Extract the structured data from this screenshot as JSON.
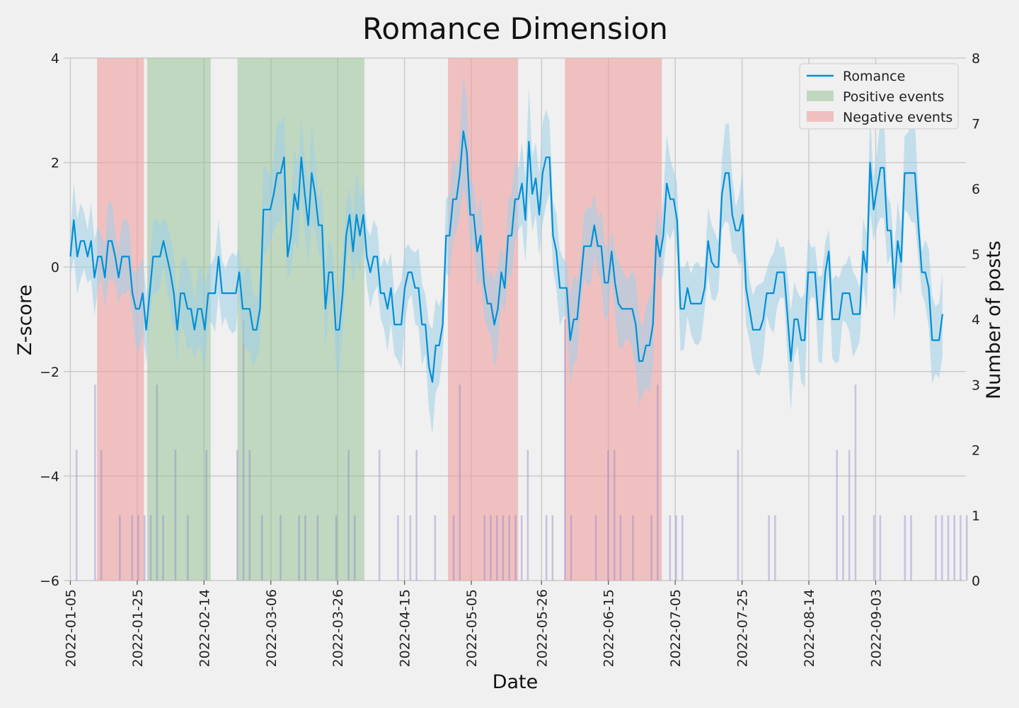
{
  "chart_data": {
    "type": "line",
    "title": "Romance Dimension",
    "xlabel": "Date",
    "ylabel": "Z-score",
    "y2label": "Number of posts",
    "ylim": [
      -6,
      4
    ],
    "y2lim": [
      0,
      8
    ],
    "xlim": [
      "2022-01-03",
      "2022-09-30"
    ],
    "x_ticks": [
      "2022-01-05",
      "2022-01-25",
      "2022-02-14",
      "2022-03-06",
      "2022-03-26",
      "2022-04-15",
      "2022-05-05",
      "2022-05-26",
      "2022-06-15",
      "2022-07-05",
      "2022-07-25",
      "2022-08-14",
      "2022-09-03"
    ],
    "y_ticks": [
      -6,
      -4,
      -2,
      0,
      2,
      4
    ],
    "y2_ticks": [
      0,
      1,
      2,
      3,
      4,
      5,
      6,
      7,
      8
    ],
    "grid": true,
    "legend_position": "top-right",
    "legend": [
      {
        "label": "Romance",
        "kind": "line",
        "color": "#008fd5"
      },
      {
        "label": "Positive events",
        "kind": "patch",
        "color": "#8fc08f"
      },
      {
        "label": "Negative events",
        "kind": "patch",
        "color": "#f0a0a0"
      }
    ],
    "colors": {
      "line": "#008fd5",
      "band": "#9fcfe8",
      "bars": "#8a7fc8",
      "positive": "#8fc08f",
      "negative": "#f0a0a0"
    },
    "positive_events": [
      [
        "2022-01-28",
        "2022-02-16"
      ],
      [
        "2022-02-24",
        "2022-04-03"
      ]
    ],
    "negative_events": [
      [
        "2022-01-13",
        "2022-01-27"
      ],
      [
        "2022-04-28",
        "2022-05-19"
      ],
      [
        "2022-06-02",
        "2022-07-01"
      ]
    ],
    "series": [
      {
        "name": "Romance",
        "x_start": "2022-01-05",
        "x_end": "2022-09-23",
        "values": [
          0.2,
          0.9,
          0.2,
          0.5,
          0.5,
          0.2,
          0.5,
          -0.2,
          0.2,
          0.2,
          -0.2,
          0.5,
          0.5,
          0.2,
          -0.2,
          0.2,
          0.2,
          0.2,
          -0.5,
          -0.8,
          -0.8,
          -0.5,
          -1.2,
          -0.5,
          0.2,
          0.2,
          0.2,
          0.5,
          0.2,
          -0.1,
          -0.5,
          -1.2,
          -0.5,
          -0.5,
          -0.8,
          -0.8,
          -1.2,
          -0.8,
          -0.8,
          -1.2,
          -0.5,
          -0.5,
          -0.5,
          0.2,
          -0.5,
          -0.5,
          -0.5,
          -0.5,
          -0.5,
          -0.1,
          -0.8,
          -0.8,
          -0.8,
          -1.2,
          -1.2,
          -0.8,
          1.1,
          1.1,
          1.1,
          1.4,
          1.8,
          1.8,
          2.1,
          0.2,
          0.6,
          1.4,
          1.1,
          2.1,
          1.4,
          0.8,
          1.8,
          1.4,
          0.8,
          0.8,
          -0.8,
          -0.1,
          -0.1,
          -1.2,
          -1.2,
          -0.5,
          0.6,
          1.0,
          0.3,
          1.0,
          0.6,
          1.0,
          0.2,
          -0.1,
          0.2,
          0.2,
          -0.5,
          -0.5,
          -0.8,
          -0.4,
          -1.1,
          -1.1,
          -1.1,
          -0.4,
          -0.1,
          -0.1,
          -0.4,
          -0.4,
          -1.1,
          -1.1,
          -1.9,
          -2.2,
          -1.5,
          -1.5,
          -1.1,
          0.6,
          0.6,
          1.3,
          1.3,
          1.8,
          2.6,
          2.2,
          1.0,
          1.0,
          0.3,
          0.6,
          -0.3,
          -0.7,
          -0.7,
          -1.1,
          -0.8,
          -0.1,
          -0.4,
          0.6,
          0.6,
          1.3,
          1.3,
          1.6,
          0.9,
          2.4,
          1.4,
          1.7,
          1.0,
          1.8,
          2.1,
          2.1,
          0.6,
          0.3,
          -0.4,
          -0.4,
          -0.4,
          -1.4,
          -1.0,
          -1.0,
          -0.3,
          0.4,
          0.4,
          0.4,
          0.8,
          0.4,
          0.4,
          -0.3,
          -0.3,
          0.3,
          -0.3,
          -0.7,
          -0.8,
          -0.8,
          -0.8,
          -0.8,
          -1.1,
          -1.8,
          -1.8,
          -1.5,
          -1.5,
          -1.1,
          0.6,
          0.2,
          0.6,
          1.6,
          1.3,
          1.3,
          0.9,
          -0.8,
          -0.8,
          -0.4,
          -0.7,
          -0.7,
          -0.7,
          -0.7,
          -0.4,
          0.5,
          0.1,
          0.0,
          0.0,
          1.4,
          1.8,
          1.8,
          1.0,
          0.7,
          0.7,
          1.0,
          -0.4,
          -0.8,
          -1.2,
          -1.2,
          -1.2,
          -1.0,
          -0.5,
          -0.5,
          -0.5,
          -0.1,
          -0.1,
          -0.1,
          -0.9,
          -1.8,
          -1.0,
          -1.0,
          -1.4,
          -1.4,
          -0.1,
          -0.1,
          -0.1,
          -1.0,
          -1.0,
          -0.1,
          0.3,
          -1.0,
          -1.0,
          -1.0,
          -0.5,
          -0.5,
          -0.5,
          -0.9,
          -0.9,
          -0.9,
          0.3,
          -0.1,
          2.0,
          1.1,
          1.5,
          1.9,
          1.9,
          0.7,
          0.7,
          -0.4,
          0.5,
          0.1,
          1.8,
          1.8,
          1.8,
          1.8,
          0.8,
          -0.1,
          -0.1,
          -0.4,
          -1.4,
          -1.4,
          -1.4,
          -0.9
        ]
      }
    ],
    "post_counts": {
      "x_start": "2022-01-05",
      "values": [
        0,
        2,
        0,
        0,
        3,
        2,
        0,
        0,
        1,
        0,
        1,
        1,
        1,
        1,
        3,
        1,
        0,
        2,
        0,
        1,
        0,
        0,
        2,
        0,
        0,
        0,
        0,
        2,
        4,
        2,
        0,
        1,
        0,
        0,
        1,
        0,
        0,
        1,
        1,
        0,
        1,
        0,
        0,
        1,
        0,
        2,
        1,
        0,
        0,
        0,
        2,
        0,
        0,
        1,
        0,
        1,
        2,
        0,
        0,
        1,
        0,
        0,
        1,
        3,
        0,
        0,
        0,
        1,
        1,
        1,
        1,
        1,
        1,
        1,
        2,
        0,
        0,
        1,
        1,
        0,
        4,
        1,
        0,
        0,
        0,
        1,
        0,
        2,
        2,
        1,
        0,
        1,
        0,
        0,
        1,
        3,
        0,
        1,
        1,
        1,
        0,
        0,
        0,
        0,
        0,
        0,
        0,
        0,
        2,
        0,
        0,
        0,
        0,
        1,
        1,
        0,
        0,
        0,
        0,
        0,
        0,
        0,
        0,
        0,
        2,
        1,
        2,
        3,
        0,
        0,
        1,
        1,
        0,
        0,
        0,
        1,
        1,
        0,
        0,
        0,
        1,
        1,
        1,
        1,
        1,
        1
      ]
    }
  }
}
